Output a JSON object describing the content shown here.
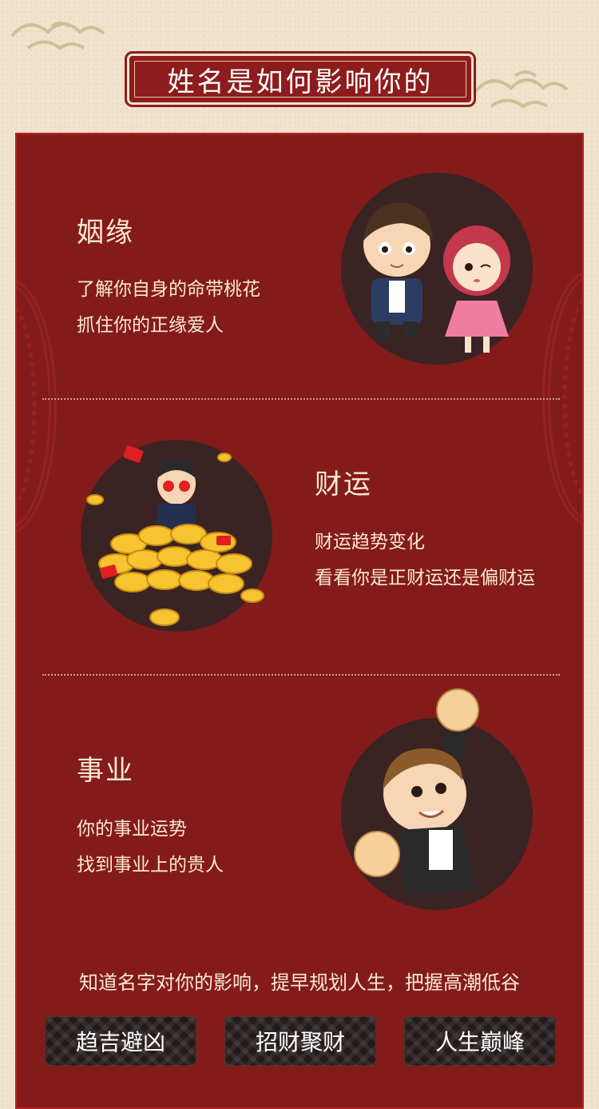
{
  "title": "姓名是如何影响你的",
  "sections": [
    {
      "title": "姻缘",
      "lines": [
        "了解你自身的命带桃花",
        "抓住你的正缘爱人"
      ],
      "illustration": "couple-illustration"
    },
    {
      "title": "财运",
      "lines": [
        "财运趋势变化",
        "看看你是正财运还是偏财运"
      ],
      "illustration": "gold-coins-illustration"
    },
    {
      "title": "事业",
      "lines": [
        "你的事业运势",
        "找到事业上的贵人"
      ],
      "illustration": "success-fist-illustration"
    }
  ],
  "footer": {
    "text": "知道名字对你的影响，提早规划人生，把握高潮低谷",
    "buttons": [
      "趋吉避凶",
      "招财聚财",
      "人生巅峰"
    ]
  },
  "colors": {
    "background": "#efe3cc",
    "panel": "#841b1b",
    "text": "#fbead0",
    "circle": "#3a2323"
  }
}
